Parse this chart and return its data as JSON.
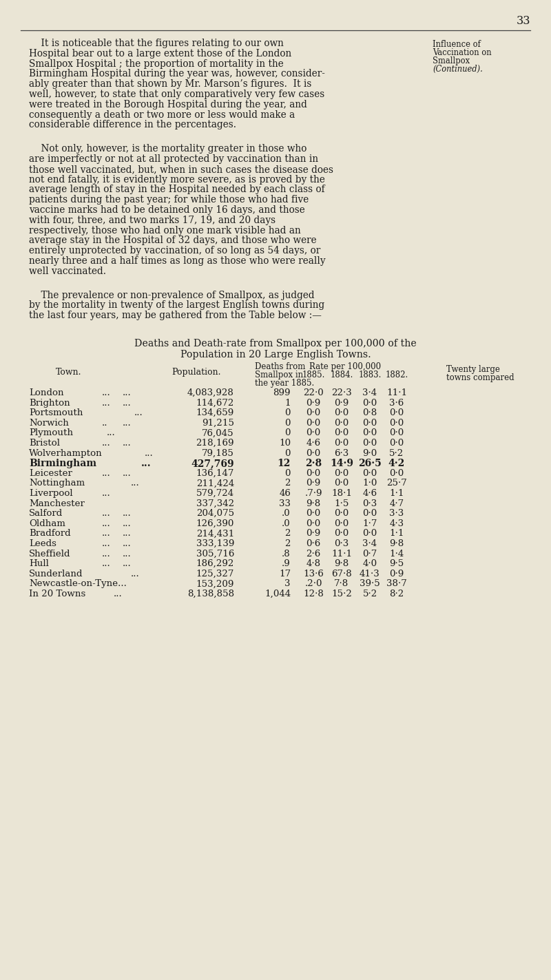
{
  "page_number": "33",
  "background_color": "#EAE5D5",
  "sidebar_lines": [
    "Influence of",
    "Vaccination on",
    "Smallpox",
    "(Continued)."
  ],
  "rows": [
    {
      "town": "London",
      "dots1": "...",
      "dots2": "...",
      "population": "4,083,928",
      "deaths": "899",
      "r1885": "22·0",
      "r1884": "22·3",
      "r1883": "3·4",
      "r1882": "11·1",
      "bold": false
    },
    {
      "town": "Brighton",
      "dots1": "...",
      "dots2": "...",
      "population": "114,672",
      "deaths": "1",
      "r1885": "0·9",
      "r1884": "0·9",
      "r1883": "0·0",
      "r1882": "3·6",
      "bold": false
    },
    {
      "town": "Portsmouth",
      "dots1": "...",
      "dots2": "",
      "population": "134,659",
      "deaths": "0",
      "r1885": "0·0",
      "r1884": "0·0",
      "r1883": "0·8",
      "r1882": "0·0",
      "bold": false
    },
    {
      "town": "Norwich",
      "dots1": "..",
      "dots2": "...",
      "population": "91,215",
      "deaths": "0",
      "r1885": "0·0",
      "r1884": "0·0",
      "r1883": "0·0",
      "r1882": "0·0",
      "bold": false
    },
    {
      "town": "Plymouth",
      "dots1": "...",
      "dots2": "",
      "population": "76,045",
      "deaths": "0",
      "r1885": "0·0",
      "r1884": "0·0",
      "r1883": "0·0",
      "r1882": "0·0",
      "bold": false
    },
    {
      "town": "Bristol",
      "dots1": "...",
      "dots2": "...",
      "population": "218,169",
      "deaths": "10",
      "r1885": "4·6",
      "r1884": "0·0",
      "r1883": "0·0",
      "r1882": "0·0",
      "bold": false
    },
    {
      "town": "Wolverhampton",
      "dots1": "...",
      "dots2": "",
      "population": "79,185",
      "deaths": "0",
      "r1885": "0·0",
      "r1884": "6·3",
      "r1883": "9·0",
      "r1882": "5·2",
      "bold": false
    },
    {
      "town": "Birmingham",
      "dots1": "...",
      "dots2": "",
      "population": "427,769",
      "deaths": "12",
      "r1885": "2·8",
      "r1884": "14·9",
      "r1883": "26·5",
      "r1882": "4·2",
      "bold": true
    },
    {
      "town": "Leicester",
      "dots1": "...",
      "dots2": "...",
      "population": "136,147",
      "deaths": "0",
      "r1885": "0·0",
      "r1884": "0·0",
      "r1883": "0·0",
      "r1882": "0·0",
      "bold": false
    },
    {
      "town": "Nottingham",
      "dots1": "...",
      "dots2": "",
      "population": "211,424",
      "deaths": "2",
      "r1885": "0·9",
      "r1884": "0·0",
      "r1883": "1·0",
      "r1882": "25·7",
      "bold": false
    },
    {
      "town": "Liverpool",
      "dots1": "...",
      "dots2": "",
      "population": "579,724",
      "deaths": "46",
      "r1885": ".7·9",
      "r1884": "18·1",
      "r1883": "4·6",
      "r1882": "1·1",
      "bold": false
    },
    {
      "town": "Manchester",
      "dots1": "",
      "dots2": "",
      "population": "337,342",
      "deaths": "33",
      "r1885": "9·8",
      "r1884": "1·5",
      "r1883": "0·3",
      "r1882": "4·7",
      "bold": false
    },
    {
      "town": "Salford",
      "dots1": "...",
      "dots2": "...",
      "population": "204,075",
      "deaths": ".0",
      "r1885": "0·0",
      "r1884": "0·0",
      "r1883": "0·0",
      "r1882": "3·3",
      "bold": false
    },
    {
      "town": "Oldham",
      "dots1": "...",
      "dots2": "...",
      "population": "126,390",
      "deaths": ".0",
      "r1885": "0·0",
      "r1884": "0·0",
      "r1883": "1·7",
      "r1882": "4·3",
      "bold": false
    },
    {
      "town": "Bradford",
      "dots1": "...",
      "dots2": "...",
      "population": "214,431",
      "deaths": "2",
      "r1885": "0·9",
      "r1884": "0·0",
      "r1883": "0·0",
      "r1882": "1·1",
      "bold": false
    },
    {
      "town": "Leeds",
      "dots1": "...",
      "dots2": "...",
      "population": "333,139",
      "deaths": "2",
      "r1885": "0·6",
      "r1884": "0·3",
      "r1883": "3·4",
      "r1882": "9·8",
      "bold": false
    },
    {
      "town": "Sheffield",
      "dots1": "...",
      "dots2": "...",
      "population": "305,716",
      "deaths": ".8",
      "r1885": "2·6",
      "r1884": "11·1",
      "r1883": "0·7",
      "r1882": "1·4",
      "bold": false
    },
    {
      "town": "Hull",
      "dots1": "...",
      "dots2": "...",
      "population": "186,292",
      "deaths": ".9",
      "r1885": "4·8",
      "r1884": "9·8",
      "r1883": "4·0",
      "r1882": "9·5",
      "bold": false
    },
    {
      "town": "Sunderland",
      "dots1": "...",
      "dots2": "",
      "population": "125,327",
      "deaths": "17",
      "r1885": "13·6",
      "r1884": "67·8",
      "r1883": "41·3",
      "r1882": "0·9",
      "bold": false
    },
    {
      "town": "Newcastle-on-Tyne...",
      "dots1": "",
      "dots2": "",
      "population": "153,209",
      "deaths": "3",
      "r1885": ".2·0",
      "r1884": "7·8",
      "r1883": "39·5",
      "r1882": "38·7",
      "bold": false
    },
    {
      "town": "In 20 Towns",
      "dots1": "...",
      "dots2": "",
      "population": "8,138,858",
      "deaths": "1,044",
      "r1885": "12·8",
      "r1884": "15·2",
      "r1883": "5·2",
      "r1882": "8·2",
      "bold": false
    }
  ]
}
